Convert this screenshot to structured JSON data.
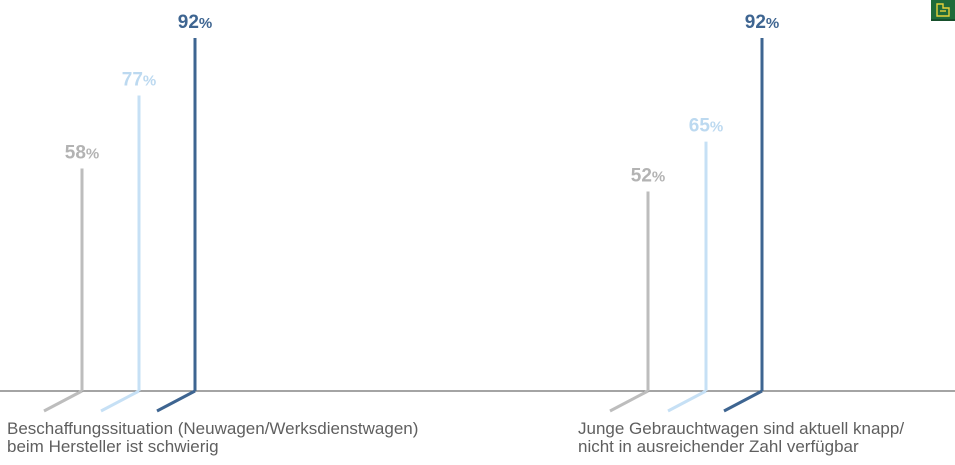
{
  "chart_data": {
    "type": "bar",
    "categories": [
      "Beschaffungssituation (Neuwagen/Werksdienstwagen)\nbeim Hersteller ist schwierig",
      "Junge Gebrauchtwagen sind aktuell knapp/\nnicht in ausreichender Zahl verfügbar"
    ],
    "series": [
      {
        "values": [
          58,
          52
        ],
        "color": "#bdbdbd",
        "label_color": "#b3b3b3"
      },
      {
        "values": [
          77,
          65
        ],
        "color": "#c6e0f5",
        "label_color": "#bcd9f0"
      },
      {
        "values": [
          92,
          92
        ],
        "color": "#3e6591",
        "label_color": "#3e6591"
      }
    ],
    "value_suffix": "%",
    "ylim": [
      0,
      100
    ],
    "grid": false,
    "legend": "none"
  },
  "labels": [
    {
      "line1": "Beschaffungssituation (Neuwagen/Werksdienstwagen)",
      "line2": "beim Hersteller ist schwierig"
    },
    {
      "line1": "Junge Gebrauchtwagen sind aktuell knapp/",
      "line2": "nicht in ausreichender Zahl verfügbar"
    }
  ],
  "icon": "corner-logo-icon"
}
